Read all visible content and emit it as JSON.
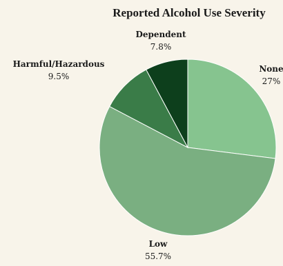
{
  "chart_data": {
    "type": "pie",
    "title": "Reported Alcohol Use Severity",
    "categories": [
      "None",
      "Low",
      "Harmful/Hazardous",
      "Dependent"
    ],
    "values": [
      27,
      55.7,
      9.5,
      7.8
    ],
    "value_labels": [
      "27%",
      "55.7%",
      "9.5%",
      "7.8%"
    ],
    "colors": [
      "#86c48f",
      "#7aaf81",
      "#3a7c48",
      "#0d3f1c"
    ],
    "start_angle": "12 o'clock",
    "direction": "clockwise",
    "legend": "none"
  }
}
